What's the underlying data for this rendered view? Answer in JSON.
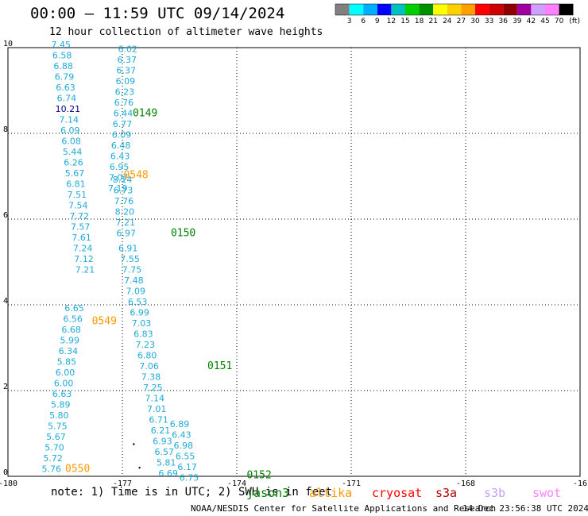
{
  "header": {
    "title": "00:00 – 11:59 UTC 09/14/2024",
    "subtitle": "12 hour collection of altimeter wave heights"
  },
  "colorbar": {
    "labels": [
      "3",
      "6",
      "9",
      "12",
      "15",
      "18",
      "21",
      "24",
      "27",
      "30",
      "33",
      "36",
      "39",
      "42",
      "45",
      "70"
    ],
    "unit": "(ft)",
    "colors": [
      "#808080",
      "#00ffff",
      "#00b0ff",
      "#0000ff",
      "#00c0c0",
      "#00d000",
      "#009000",
      "#ffff00",
      "#ffd000",
      "#ffa000",
      "#ff0000",
      "#d00000",
      "#900000",
      "#a000a0",
      "#d0a0ff",
      "#ff80ff",
      "#000000"
    ]
  },
  "footer": {
    "note": "note:  1) Time is in UTC; 2) SWH is in feet",
    "credit": "NOAA/NESDIS Center for Satellite Applications and Research",
    "generated": "14 Dec 23:56:38 UTC 2024"
  },
  "satellites": [
    {
      "name": "jason3",
      "color": "#008000"
    },
    {
      "name": "altika",
      "color": "#ff9900"
    },
    {
      "name": "cryosat",
      "color": "#ff0000"
    },
    {
      "name": "s3a",
      "color": "#b00000"
    },
    {
      "name": "s3b",
      "color": "#c0a0ff"
    },
    {
      "name": "swot",
      "color": "#ff80ff"
    }
  ],
  "chart_data": {
    "type": "scatter",
    "title": "12 hour collection of altimeter wave heights",
    "xlim": [
      -180,
      -165
    ],
    "ylim": [
      0,
      10
    ],
    "x_ticks": [
      "-180",
      "-177",
      "-174",
      "-171",
      "-168",
      "-16"
    ],
    "y_ticks": [
      "0",
      "2",
      "4",
      "6",
      "8",
      "10"
    ],
    "grid": true,
    "series": [
      {
        "name": "jason3",
        "color": "#008000",
        "pass_label": "0149",
        "label_at": {
          "lon": -176.73,
          "lat": 8.4
        },
        "points": [
          {
            "lon": -176.86,
            "lat": 9.9,
            "value": "6.02"
          },
          {
            "lon": -176.88,
            "lat": 9.65,
            "value": "6.37"
          },
          {
            "lon": -176.9,
            "lat": 9.4,
            "value": "6.37"
          },
          {
            "lon": -176.92,
            "lat": 9.15,
            "value": "6.09"
          },
          {
            "lon": -176.94,
            "lat": 8.9,
            "value": "6.23"
          },
          {
            "lon": -176.96,
            "lat": 8.65,
            "value": "6.76"
          },
          {
            "lon": -176.98,
            "lat": 8.4,
            "value": "6.44"
          },
          {
            "lon": -177.0,
            "lat": 8.15,
            "value": "6.77"
          },
          {
            "lon": -177.02,
            "lat": 7.9,
            "value": "6.09"
          },
          {
            "lon": -177.04,
            "lat": 7.65,
            "value": "6.48"
          },
          {
            "lon": -177.06,
            "lat": 7.4,
            "value": "6.43"
          },
          {
            "lon": -177.08,
            "lat": 7.15,
            "value": "6.95"
          },
          {
            "lon": -177.1,
            "lat": 6.9,
            "value": "7.07"
          },
          {
            "lon": -177.12,
            "lat": 6.65,
            "value": "7.19"
          }
        ]
      },
      {
        "name": "altika",
        "color": "#ff9900",
        "pass_label": "0548",
        "label_at": {
          "lon": -176.97,
          "lat": 6.95
        },
        "points": [
          {
            "lon": -178.61,
            "lat": 10.0,
            "value": "7.45"
          },
          {
            "lon": -178.58,
            "lat": 9.75,
            "value": "6.58"
          },
          {
            "lon": -178.55,
            "lat": 9.5,
            "value": "6.88"
          },
          {
            "lon": -178.52,
            "lat": 9.25,
            "value": "6.79"
          },
          {
            "lon": -178.49,
            "lat": 9.0,
            "value": "6.63"
          },
          {
            "lon": -178.46,
            "lat": 8.75,
            "value": "6.74"
          },
          {
            "lon": -178.43,
            "lat": 8.5,
            "value": "10.21",
            "color": "#000080"
          },
          {
            "lon": -178.4,
            "lat": 8.25,
            "value": "7.14"
          },
          {
            "lon": -178.37,
            "lat": 8.0,
            "value": "6.09"
          },
          {
            "lon": -178.34,
            "lat": 7.75,
            "value": "6.08"
          },
          {
            "lon": -178.31,
            "lat": 7.5,
            "value": "5.44"
          },
          {
            "lon": -178.28,
            "lat": 7.25,
            "value": "6.26"
          },
          {
            "lon": -178.25,
            "lat": 7.0,
            "value": "5.67"
          },
          {
            "lon": -178.22,
            "lat": 6.75,
            "value": "6.81"
          },
          {
            "lon": -178.19,
            "lat": 6.5,
            "value": "7.51"
          },
          {
            "lon": -178.16,
            "lat": 6.25,
            "value": "7.54"
          },
          {
            "lon": -178.13,
            "lat": 6.0,
            "value": "7.72"
          },
          {
            "lon": -178.1,
            "lat": 5.75,
            "value": "7.57"
          },
          {
            "lon": -178.07,
            "lat": 5.5,
            "value": "7.61"
          },
          {
            "lon": -178.04,
            "lat": 5.25,
            "value": "7.24"
          },
          {
            "lon": -178.01,
            "lat": 5.0,
            "value": "7.12"
          },
          {
            "lon": -177.98,
            "lat": 4.75,
            "value": "7.21"
          }
        ]
      },
      {
        "name": "jason3",
        "color": "#008000",
        "pass_label": "0150",
        "label_at": {
          "lon": -175.73,
          "lat": 5.6
        },
        "points": [
          {
            "lon": -177.0,
            "lat": 6.85,
            "value": "8.14"
          },
          {
            "lon": -176.98,
            "lat": 6.6,
            "value": "6.73"
          },
          {
            "lon": -176.96,
            "lat": 6.35,
            "value": "7.76"
          },
          {
            "lon": -176.94,
            "lat": 6.1,
            "value": "8.20"
          },
          {
            "lon": -176.92,
            "lat": 5.85,
            "value": "7.21"
          },
          {
            "lon": -176.9,
            "lat": 5.6,
            "value": "6.97"
          },
          {
            "lon": -176.85,
            "lat": 5.25,
            "value": "6.91"
          },
          {
            "lon": -176.8,
            "lat": 5.0,
            "value": "7.55"
          },
          {
            "lon": -176.75,
            "lat": 4.75,
            "value": "7.75"
          },
          {
            "lon": -176.7,
            "lat": 4.5,
            "value": "7.48"
          },
          {
            "lon": -176.65,
            "lat": 4.25,
            "value": "7.09"
          },
          {
            "lon": -176.6,
            "lat": 4.0,
            "value": "6.53"
          },
          {
            "lon": -176.55,
            "lat": 3.75,
            "value": "6.99"
          },
          {
            "lon": -176.5,
            "lat": 3.5,
            "value": "7.03"
          },
          {
            "lon": -176.45,
            "lat": 3.25,
            "value": "6.83"
          },
          {
            "lon": -176.4,
            "lat": 3.0,
            "value": "7.23"
          },
          {
            "lon": -176.35,
            "lat": 2.75,
            "value": "6.80"
          },
          {
            "lon": -176.3,
            "lat": 2.5,
            "value": "7.06"
          },
          {
            "lon": -176.25,
            "lat": 2.25,
            "value": "7.38"
          },
          {
            "lon": -176.2,
            "lat": 2.0,
            "value": "7.25"
          }
        ]
      },
      {
        "name": "altika",
        "color": "#ff9900",
        "pass_label": "0549",
        "label_at": {
          "lon": -177.8,
          "lat": 3.55
        },
        "points": [
          {
            "lon": -178.26,
            "lat": 3.85,
            "value": "6.65"
          },
          {
            "lon": -178.3,
            "lat": 3.6,
            "value": "6.56"
          },
          {
            "lon": -178.34,
            "lat": 3.35,
            "value": "6.68"
          },
          {
            "lon": -178.38,
            "lat": 3.1,
            "value": "5.99"
          },
          {
            "lon": -178.42,
            "lat": 2.85,
            "value": "6.34"
          },
          {
            "lon": -178.46,
            "lat": 2.6,
            "value": "5.85"
          },
          {
            "lon": -178.5,
            "lat": 2.35,
            "value": "6.00"
          },
          {
            "lon": -178.54,
            "lat": 2.1,
            "value": "6.00"
          },
          {
            "lon": -178.58,
            "lat": 1.85,
            "value": "6.63"
          },
          {
            "lon": -178.62,
            "lat": 1.6,
            "value": "5.89"
          },
          {
            "lon": -178.66,
            "lat": 1.35,
            "value": "5.80"
          },
          {
            "lon": -178.7,
            "lat": 1.1,
            "value": "5.75"
          },
          {
            "lon": -178.74,
            "lat": 0.85,
            "value": "5.67"
          },
          {
            "lon": -178.78,
            "lat": 0.6,
            "value": "5.70"
          },
          {
            "lon": -178.82,
            "lat": 0.35,
            "value": "5.72"
          },
          {
            "lon": -178.86,
            "lat": 0.1,
            "value": "5.76"
          }
        ]
      },
      {
        "name": "jason3",
        "color": "#008000",
        "pass_label": "0151",
        "label_at": {
          "lon": -174.77,
          "lat": 2.5
        },
        "points": [
          {
            "lon": -176.15,
            "lat": 1.75,
            "value": "7.14"
          },
          {
            "lon": -176.1,
            "lat": 1.5,
            "value": "7.01"
          },
          {
            "lon": -176.05,
            "lat": 1.25,
            "value": "6.71"
          },
          {
            "lon": -176.0,
            "lat": 1.0,
            "value": "6.21"
          },
          {
            "lon": -175.95,
            "lat": 0.75,
            "value": "6.93"
          },
          {
            "lon": -175.9,
            "lat": 0.5,
            "value": "6.57"
          },
          {
            "lon": -175.85,
            "lat": 0.25,
            "value": "5.81"
          },
          {
            "lon": -175.8,
            "lat": 0.0,
            "value": "6.69"
          }
        ]
      },
      {
        "name": "jason3",
        "color": "#008000",
        "pass_label": "0152",
        "label_at": {
          "lon": -173.74,
          "lat": -0.05
        },
        "points": [
          {
            "lon": -175.5,
            "lat": 1.15,
            "value": "6.89"
          },
          {
            "lon": -175.45,
            "lat": 0.9,
            "value": "6.43"
          },
          {
            "lon": -175.4,
            "lat": 0.65,
            "value": "6.98"
          },
          {
            "lon": -175.35,
            "lat": 0.4,
            "value": "6.55"
          },
          {
            "lon": -175.3,
            "lat": 0.15,
            "value": "6.17"
          },
          {
            "lon": -175.25,
            "lat": -0.1,
            "value": "6.75"
          }
        ]
      },
      {
        "name": "altika",
        "color": "#ff9900",
        "pass_label": "0550",
        "label_at": {
          "lon": -178.5,
          "lat": 0.1
        },
        "points": []
      }
    ],
    "dots": [
      {
        "lon": -176.7,
        "lat": 0.75
      },
      {
        "lon": -176.55,
        "lat": 0.2
      }
    ]
  }
}
